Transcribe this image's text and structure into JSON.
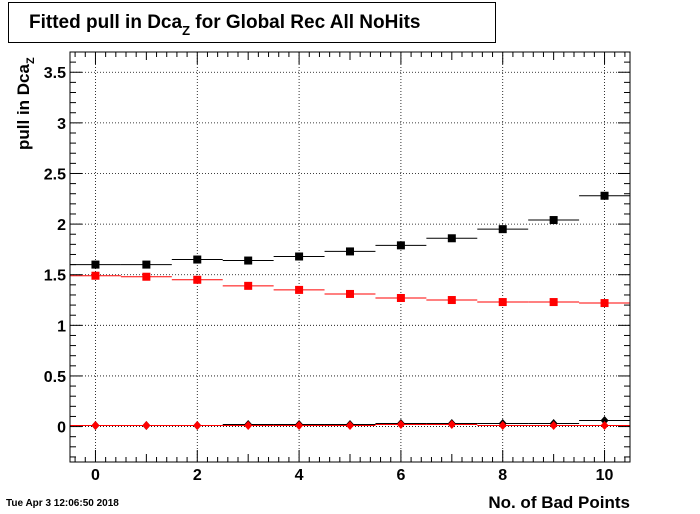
{
  "title": {
    "main": "Fitted pull in Dca",
    "sub": "Z",
    "rest": " for Global Rec All NoHits"
  },
  "ylabel": {
    "main": "pull in Dca",
    "sub": "Z"
  },
  "xlabel": "No. of Bad Points",
  "timestamp": "Tue Apr  3 12:06:50 2018",
  "chart_data": {
    "type": "scatter",
    "xlim": [
      -0.5,
      10.5
    ],
    "ylim": [
      -0.35,
      3.7
    ],
    "grid": true,
    "x_ticks": [
      0,
      2,
      4,
      6,
      8,
      10
    ],
    "x_tick_labels": [
      "0",
      "2",
      "4",
      "6",
      "8",
      "10"
    ],
    "y_ticks": [
      0,
      0.5,
      1,
      1.5,
      2,
      2.5,
      3,
      3.5
    ],
    "y_tick_labels": [
      "0",
      "0.5",
      "1",
      "1.5",
      "2",
      "2.5",
      "3",
      "3.5"
    ],
    "x": [
      0,
      1,
      2,
      3,
      4,
      5,
      6,
      7,
      8,
      9,
      10
    ],
    "series": [
      {
        "marker": "square",
        "color": "#000000",
        "values": [
          1.6,
          1.6,
          1.65,
          1.64,
          1.68,
          1.73,
          1.79,
          1.86,
          1.95,
          2.04,
          2.28
        ]
      },
      {
        "marker": "square",
        "color": "#ff0000",
        "values": [
          1.49,
          1.48,
          1.45,
          1.39,
          1.35,
          1.31,
          1.27,
          1.25,
          1.23,
          1.23,
          1.22
        ]
      },
      {
        "marker": "diamond",
        "color": "#000000",
        "values": [
          0.01,
          0.01,
          0.01,
          0.02,
          0.02,
          0.02,
          0.03,
          0.03,
          0.03,
          0.03,
          0.06
        ]
      },
      {
        "marker": "diamond",
        "color": "#ff0000",
        "values": [
          0.01,
          0.01,
          0.01,
          0.01,
          0.01,
          0.01,
          0.02,
          0.02,
          0.01,
          0.01,
          0.01
        ]
      }
    ]
  }
}
